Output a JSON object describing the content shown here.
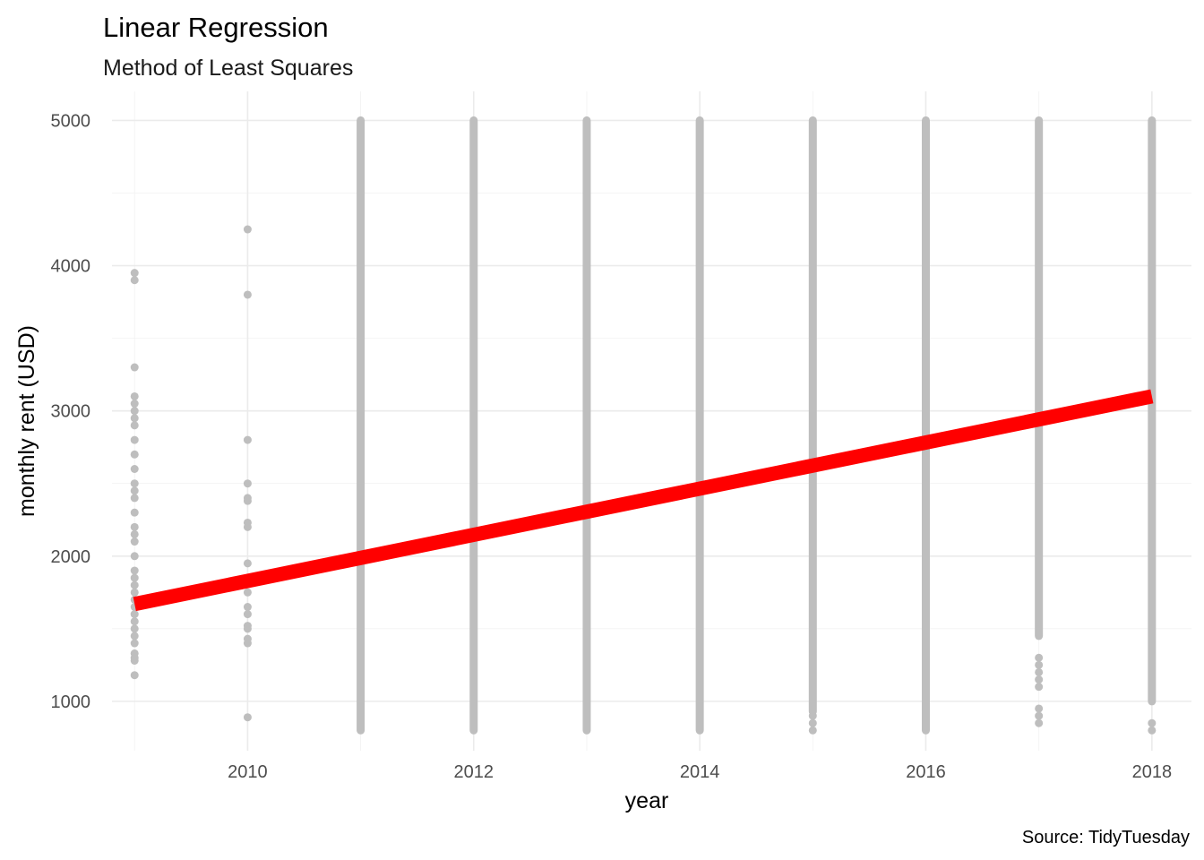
{
  "chart_data": {
    "type": "scatter",
    "title": "Linear Regression",
    "subtitle": "Method of Least Squares",
    "xlabel": "year",
    "ylabel": "monthly rent (USD)",
    "caption": "Source: TidyTuesday",
    "xlim": [
      2008.8,
      2018.35
    ],
    "ylim": [
      660,
      5200
    ],
    "x_ticks": [
      2010,
      2012,
      2014,
      2016,
      2018
    ],
    "y_ticks": [
      1000,
      2000,
      3000,
      4000,
      5000
    ],
    "grid": true,
    "point_color": "#bebebe",
    "line_color": "#ff0000",
    "series": [
      {
        "kind": "points",
        "columns": [
          {
            "x": 2009,
            "values": [
              1180,
              1280,
              1300,
              1330,
              1400,
              1450,
              1500,
              1550,
              1600,
              1650,
              1700,
              1750,
              1800,
              1850,
              1900,
              2000,
              2100,
              2150,
              2200,
              2300,
              2400,
              2450,
              2500,
              2600,
              2700,
              2800,
              2900,
              2950,
              3000,
              3050,
              3100,
              3300,
              3900,
              3950
            ]
          },
          {
            "x": 2010,
            "values": [
              890,
              1400,
              1430,
              1500,
              1520,
              1600,
              1650,
              1750,
              1950,
              2200,
              2230,
              2380,
              2400,
              2500,
              2800,
              3800,
              4250
            ]
          },
          {
            "x": 2011,
            "ranges": [
              [
                800,
                5000
              ]
            ]
          },
          {
            "x": 2012,
            "ranges": [
              [
                800,
                5000
              ]
            ]
          },
          {
            "x": 2013,
            "ranges": [
              [
                800,
                5000
              ]
            ]
          },
          {
            "x": 2014,
            "ranges": [
              [
                800,
                5000
              ]
            ]
          },
          {
            "x": 2015,
            "ranges": [
              [
                930,
                5000
              ]
            ],
            "values": [
              800,
              850,
              900
            ]
          },
          {
            "x": 2016,
            "ranges": [
              [
                800,
                5000
              ]
            ]
          },
          {
            "x": 2017,
            "ranges": [
              [
                1450,
                5000
              ]
            ],
            "values": [
              850,
              900,
              950,
              1100,
              1150,
              1200,
              1250,
              1300
            ]
          },
          {
            "x": 2018,
            "ranges": [
              [
                1000,
                5000
              ]
            ],
            "values": [
              800,
              850
            ]
          }
        ]
      },
      {
        "kind": "regression-line",
        "x": [
          2009,
          2018
        ],
        "y": [
          1670,
          3100
        ]
      }
    ]
  }
}
